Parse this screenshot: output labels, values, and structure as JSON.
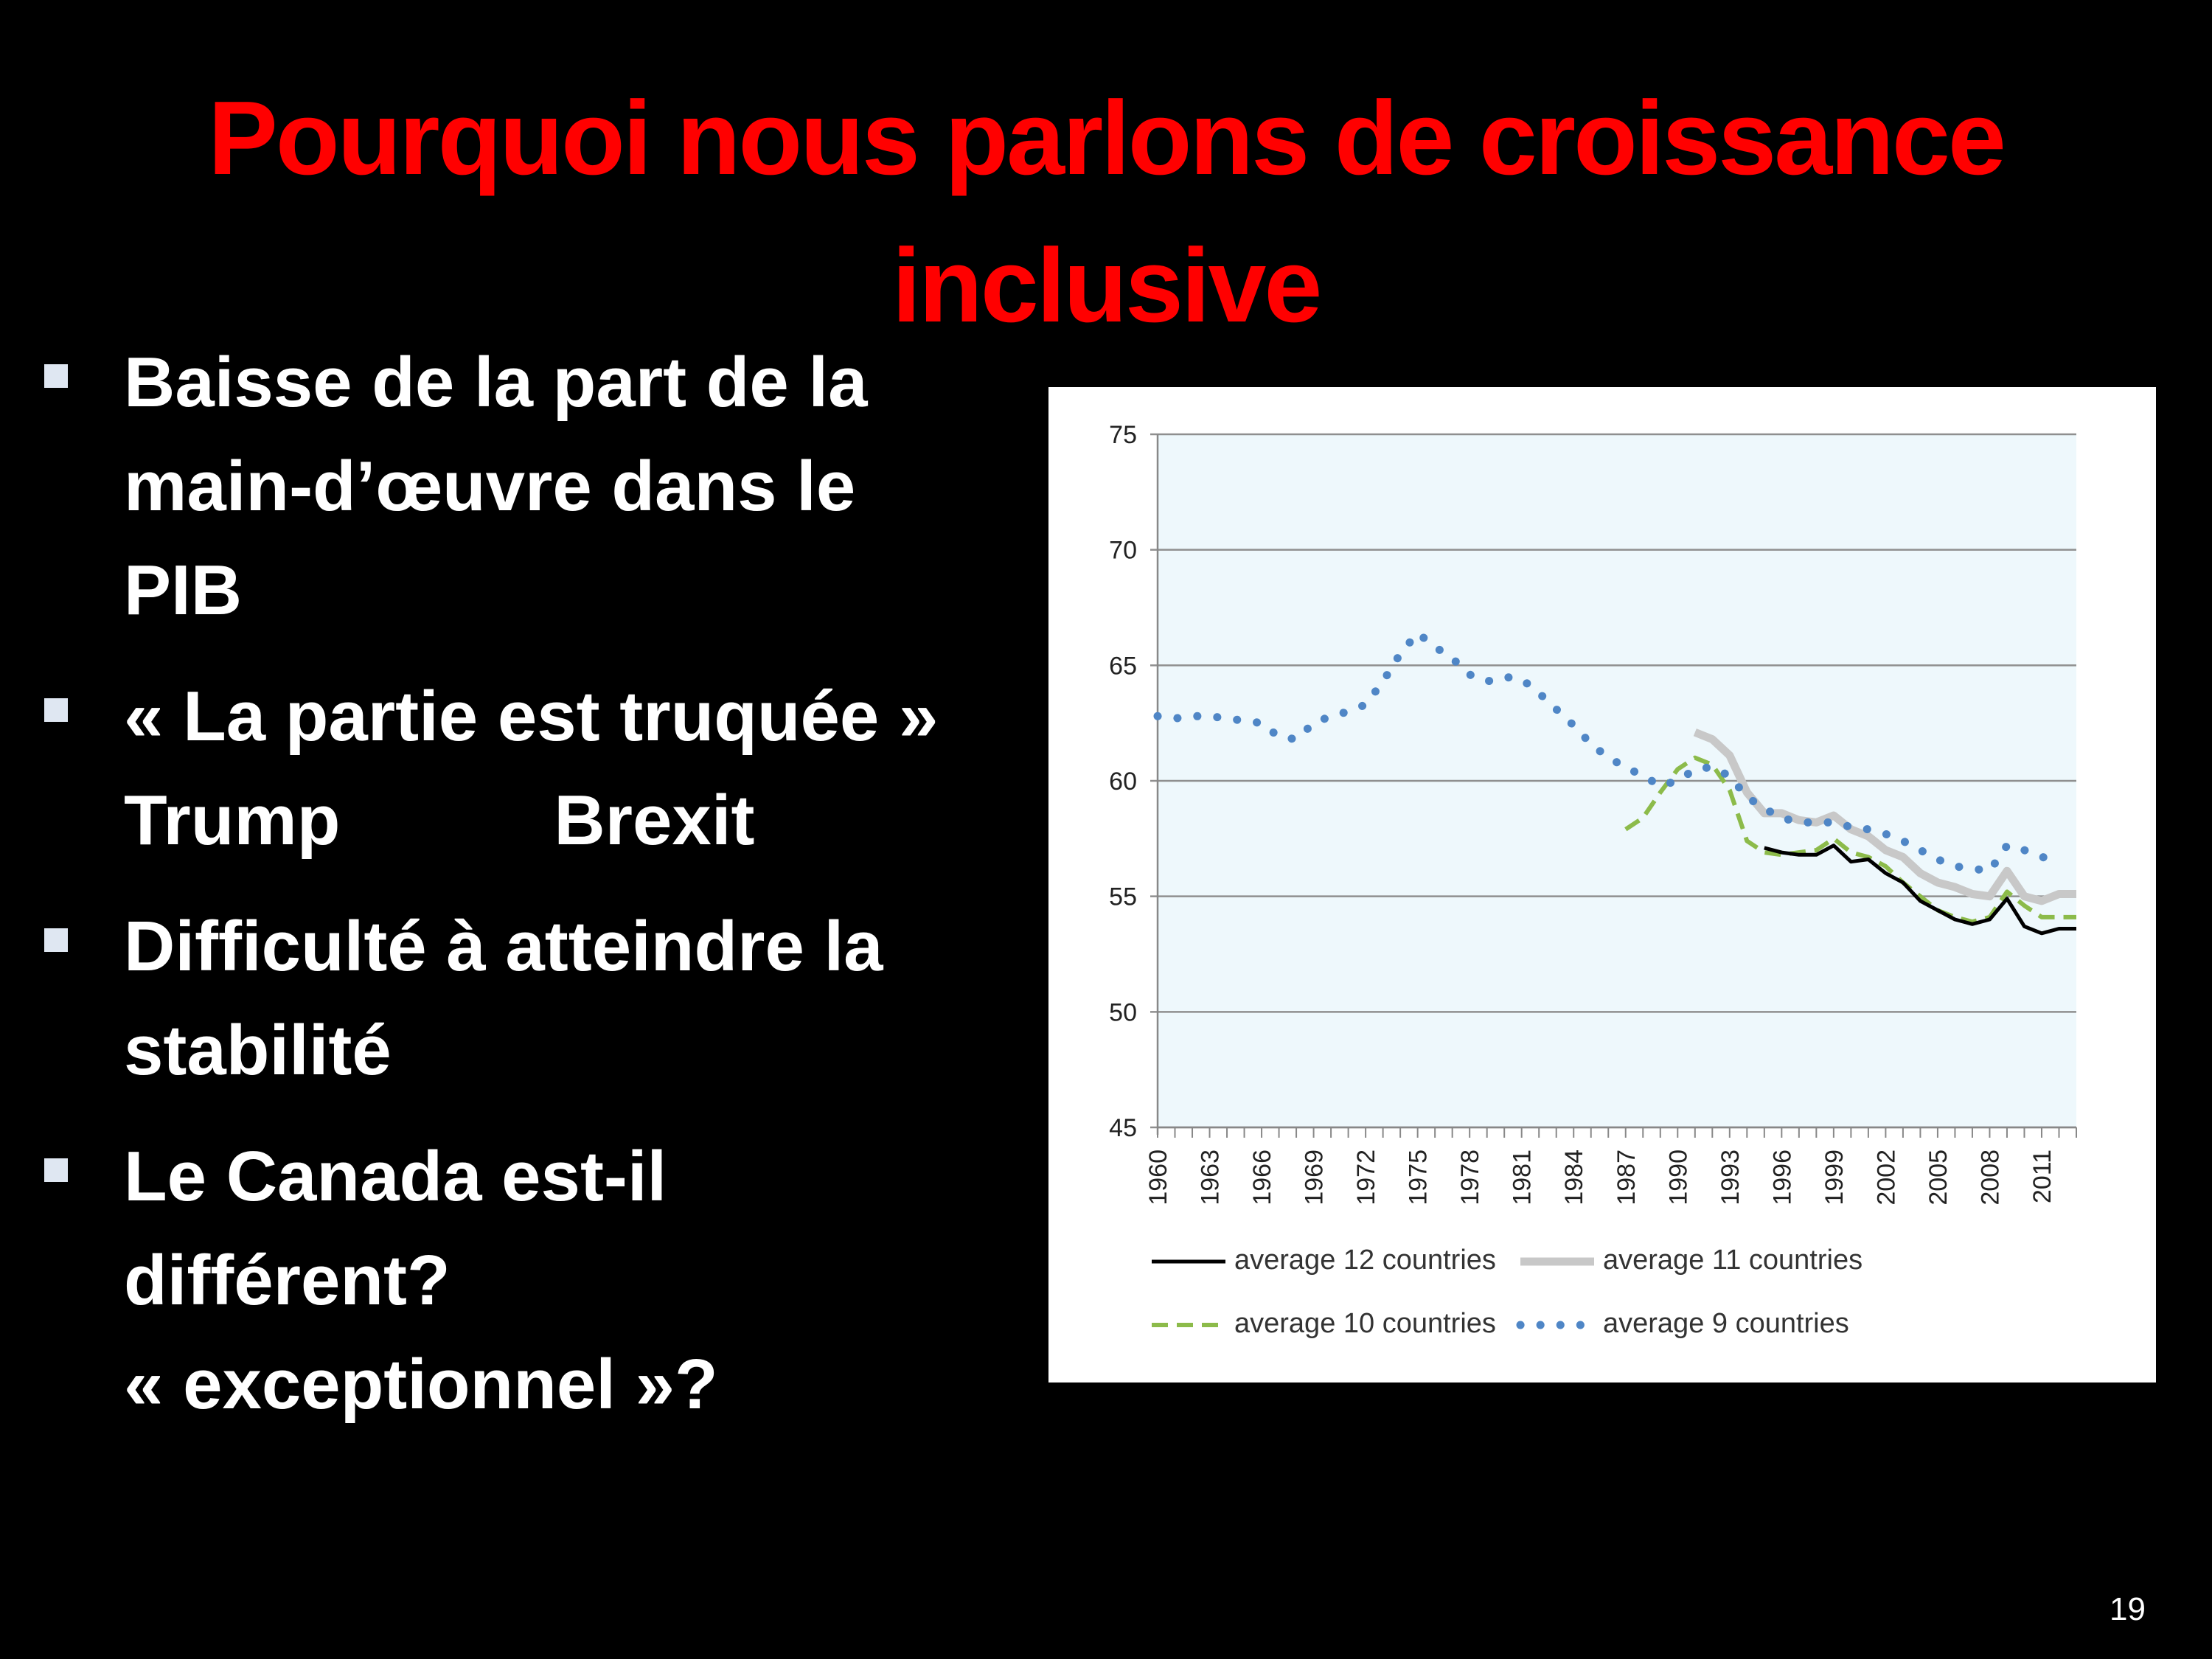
{
  "slide": {
    "title_lines": [
      "Pourquoi nous parlons de croissance",
      "inclusive"
    ],
    "page_number": "19",
    "colors": {
      "background": "#000000",
      "title": "#ff0000",
      "text": "#ffffff",
      "bullet": "#dfe7f2"
    }
  },
  "bullets": [
    {
      "lines": [
        "Baisse de la part de la",
        "main-d’œuvre dans le",
        "PIB"
      ]
    },
    {
      "lines": [
        "« La partie est truquée »"
      ],
      "extra": {
        "left": "Trump",
        "right": "Brexit"
      }
    },
    {
      "lines": [
        "Difficulté à atteindre la",
        "stabilité"
      ]
    },
    {
      "lines": [
        "Le Canada est-il",
        "différent?",
        "« exceptionnel »?"
      ]
    }
  ],
  "chart_data": {
    "type": "line",
    "title": "",
    "xlabel": "",
    "ylabel": "",
    "ylim": [
      45,
      75
    ],
    "yticks": [
      45,
      50,
      55,
      60,
      65,
      70,
      75
    ],
    "xlim": [
      1960,
      2013
    ],
    "xtick_labels": [
      "1960",
      "1963",
      "1966",
      "1969",
      "1972",
      "1975",
      "1978",
      "1981",
      "1984",
      "1987",
      "1990",
      "1993",
      "1996",
      "1999",
      "2002",
      "2005",
      "2008",
      "2011"
    ],
    "grid": "horizontal",
    "legend": "bottom",
    "series": [
      {
        "name": "average 12 countries",
        "color": "#000000",
        "style": "solid",
        "x": [
          1995,
          1996,
          1997,
          1998,
          1999,
          2000,
          2001,
          2002,
          2003,
          2004,
          2005,
          2006,
          2007,
          2008,
          2009,
          2010,
          2011,
          2012,
          2013
        ],
        "y": [
          57.1,
          56.9,
          56.8,
          56.8,
          57.2,
          56.5,
          56.6,
          56.0,
          55.6,
          54.8,
          54.4,
          54.0,
          53.8,
          54.0,
          54.9,
          53.7,
          53.4,
          53.6,
          53.6
        ]
      },
      {
        "name": "average 11 countries",
        "color": "#c8c8c8",
        "style": "solid-thick",
        "x": [
          1991,
          1992,
          1993,
          1994,
          1995,
          1996,
          1997,
          1998,
          1999,
          2000,
          2001,
          2002,
          2003,
          2004,
          2005,
          2006,
          2007,
          2008,
          2009,
          2010,
          2011,
          2012,
          2013
        ],
        "y": [
          62.1,
          61.8,
          61.1,
          59.5,
          58.6,
          58.6,
          58.3,
          58.2,
          58.5,
          57.9,
          57.6,
          57.0,
          56.7,
          56.0,
          55.6,
          55.4,
          55.1,
          55.0,
          56.1,
          55.0,
          54.8,
          55.1,
          55.1
        ]
      },
      {
        "name": "average 10 countries",
        "color": "#8cbb4a",
        "style": "dashed",
        "x": [
          1987,
          1988,
          1989,
          1990,
          1991,
          1992,
          1993,
          1994,
          1995,
          1996,
          1997,
          1998,
          1999,
          2000,
          2001,
          2002,
          2003,
          2004,
          2005,
          2006,
          2007,
          2008,
          2009,
          2010,
          2011,
          2012,
          2013
        ],
        "y": [
          57.9,
          58.4,
          59.5,
          60.5,
          61.0,
          60.7,
          59.6,
          57.4,
          56.9,
          56.8,
          56.9,
          57.0,
          57.5,
          56.9,
          56.7,
          56.3,
          55.6,
          55.0,
          54.4,
          54.1,
          53.9,
          54.1,
          55.2,
          54.6,
          54.1,
          54.1,
          54.1
        ]
      },
      {
        "name": "average 9 countries",
        "color": "#4f86c6",
        "style": "dotted",
        "x": [
          1960,
          1961,
          1962,
          1963,
          1964,
          1965,
          1966,
          1967,
          1968,
          1969,
          1970,
          1971,
          1972,
          1973,
          1974,
          1975,
          1976,
          1977,
          1978,
          1979,
          1980,
          1981,
          1982,
          1983,
          1984,
          1985,
          1986,
          1987,
          1988,
          1989,
          1990,
          1991,
          1992,
          1993,
          1994,
          1995,
          1996,
          1997,
          1998,
          1999,
          2000,
          2001,
          2002,
          2003,
          2004,
          2005,
          2006,
          2007,
          2008,
          2009,
          2010,
          2011,
          2012
        ],
        "y": [
          62.8,
          62.7,
          62.8,
          62.8,
          62.7,
          62.6,
          62.5,
          61.9,
          61.8,
          62.5,
          62.8,
          63.0,
          63.3,
          64.3,
          65.5,
          66.4,
          65.8,
          65.3,
          64.6,
          64.3,
          64.5,
          64.4,
          63.8,
          63.1,
          62.4,
          61.6,
          61.0,
          60.6,
          60.2,
          59.8,
          60.0,
          60.5,
          60.6,
          60.2,
          59.3,
          58.8,
          58.4,
          58.2,
          58.2,
          58.2,
          58.0,
          57.9,
          57.7,
          57.4,
          57.0,
          56.6,
          56.3,
          56.2,
          56.1,
          57.2,
          57.0,
          56.7,
          56.6
        ]
      }
    ]
  }
}
